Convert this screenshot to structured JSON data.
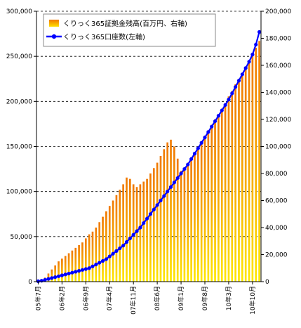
{
  "chart_data": {
    "type": "bar+line",
    "left_axis": {
      "ylim": [
        0,
        300000
      ],
      "ticks": [
        "0",
        "50,000",
        "100,000",
        "150,000",
        "200,000",
        "250,000",
        "300,000"
      ]
    },
    "right_axis": {
      "ylim": [
        0,
        200000
      ],
      "ticks": [
        "0",
        "20,000",
        "40,000",
        "60,000",
        "80,000",
        "100,000",
        "120,000",
        "140,000",
        "160,000",
        "180,000",
        "200,000"
      ]
    },
    "x_tick_labels": [
      "05年7月",
      "06年2月",
      "06年9月",
      "07年4月",
      "07年11月",
      "08年6月",
      "09年1月",
      "09年8月",
      "10年3月",
      "10年10月"
    ],
    "legend": [
      {
        "label": "くりっく365証拠金残高(百万円、右軸)",
        "type": "bar"
      },
      {
        "label": "くりっく365口座数(左軸)",
        "type": "line"
      }
    ],
    "series": [
      {
        "name": "くりっく365証拠金残高(百万円、右軸)",
        "axis": "right",
        "color": "#f07800",
        "values": [
          500,
          1500,
          3000,
          6000,
          9000,
          12000,
          15000,
          17000,
          19000,
          21000,
          23000,
          25000,
          27000,
          29000,
          32000,
          35000,
          37000,
          40000,
          44000,
          48000,
          52000,
          56000,
          60000,
          64000,
          68000,
          72000,
          77000,
          76000,
          72000,
          70000,
          72000,
          74000,
          76000,
          80000,
          84000,
          88000,
          93000,
          98000,
          103000,
          105000,
          100000,
          91000,
          82000,
          84000,
          88000,
          92000,
          96000,
          100000,
          104000,
          108000,
          112000,
          116000,
          120000,
          124000,
          128000,
          132000,
          137000,
          141000,
          146000,
          150000,
          154000,
          158000,
          163000,
          168000,
          173000,
          178000
        ]
      },
      {
        "name": "くりっく365口座数(左軸)",
        "axis": "left",
        "color": "#0000ff",
        "values": [
          500,
          1000,
          2000,
          3000,
          4000,
          5000,
          6000,
          7000,
          8000,
          9000,
          10000,
          11000,
          12000,
          13000,
          14000,
          15000,
          17000,
          19000,
          21000,
          23000,
          25000,
          28000,
          31000,
          34000,
          37000,
          40000,
          44000,
          48000,
          52000,
          56000,
          60000,
          65000,
          70000,
          75000,
          80000,
          85000,
          90000,
          95000,
          100000,
          105000,
          110000,
          115000,
          120000,
          125000,
          130000,
          136000,
          142000,
          148000,
          154000,
          160000,
          166000,
          172000,
          178000,
          184000,
          190000,
          196000,
          202000,
          209000,
          216000,
          223000,
          230000,
          237000,
          244000,
          252000,
          263000,
          277000
        ]
      }
    ],
    "grid": "horizontal dashed",
    "legend_position": "top-left"
  }
}
